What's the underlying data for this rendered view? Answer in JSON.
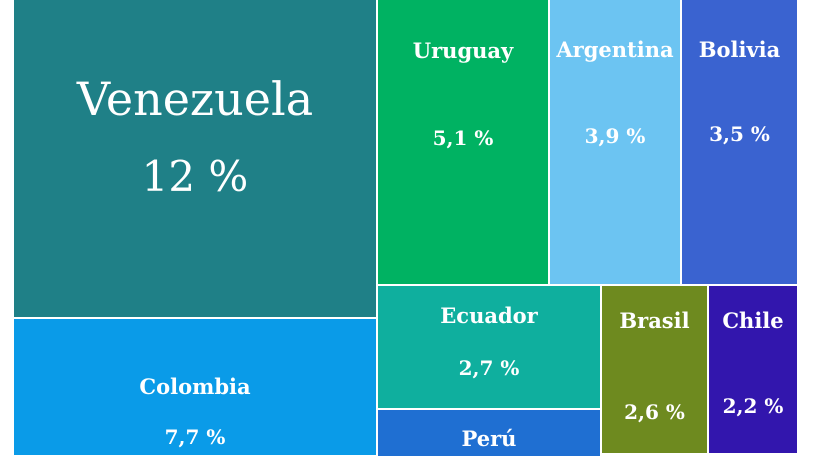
{
  "chart_data": {
    "type": "treemap",
    "items": [
      {
        "name": "Venezuela",
        "value_label": "12 %",
        "value": 12,
        "color": "#1f8087"
      },
      {
        "name": "Colombia",
        "value_label": "7,7 %",
        "value": 7.7,
        "color": "#0a9be8"
      },
      {
        "name": "Uruguay",
        "value_label": "5,1 %",
        "value": 5.1,
        "color": "#00b262"
      },
      {
        "name": "Argentina",
        "value_label": "3,9 %",
        "value": 3.9,
        "color": "#6cc4f2"
      },
      {
        "name": "Bolivia",
        "value_label": "3,5 %",
        "value": 3.5,
        "color": "#3a63d0"
      },
      {
        "name": "Ecuador",
        "value_label": "2,7 %",
        "value": 2.7,
        "color": "#0faf9e"
      },
      {
        "name": "Brasil",
        "value_label": "2,6  %",
        "value": 2.6,
        "color": "#6e8a1f"
      },
      {
        "name": "Chile",
        "value_label": "2,2 %",
        "value": 2.2,
        "color": "#3216ad"
      },
      {
        "name": "Perú",
        "value_label": "",
        "value": null,
        "color": "#1f6fd2"
      }
    ]
  }
}
